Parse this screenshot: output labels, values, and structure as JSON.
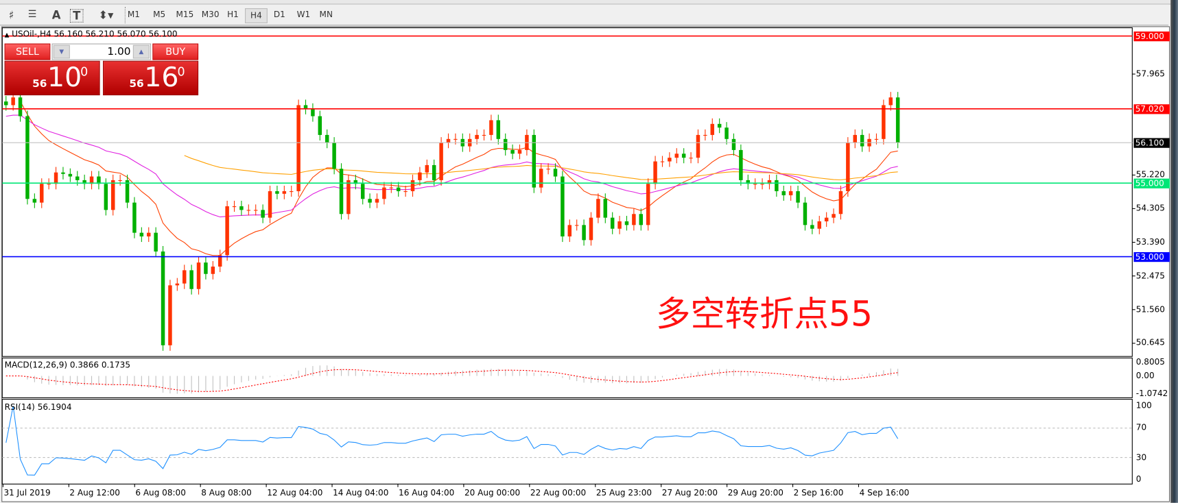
{
  "toolbar": {
    "icons": [
      "elliott-wave-icon",
      "fibonacci-icon",
      "text-icon",
      "text-label-icon",
      "arrows-icon"
    ],
    "text_icon_glyph": "A",
    "timeframes": [
      "M1",
      "M5",
      "M15",
      "M30",
      "H1",
      "H4",
      "D1",
      "W1",
      "MN"
    ],
    "selected_timeframe": "H4"
  },
  "chart": {
    "header": "USOil-,H4  56.160 56.210 56.070 56.100",
    "trade_panel": {
      "sell_label": "SELL",
      "buy_label": "BUY",
      "lot": "1.00",
      "sell_price_prefix": "56",
      "sell_price_big": "10",
      "sell_price_sup": "0",
      "buy_price_prefix": "56",
      "buy_price_big": "16",
      "buy_price_sup": "0"
    },
    "price_axis": [
      "57.965",
      "55.220",
      "54.305",
      "53.390",
      "52.475",
      "51.560",
      "50.645"
    ],
    "price_axis_values": [
      57.965,
      55.22,
      54.305,
      53.39,
      52.475,
      51.56,
      50.645
    ],
    "horizontal_lines": [
      {
        "label": "59.000",
        "value": 59.0,
        "color": "#ff0000"
      },
      {
        "label": "57.020",
        "value": 57.02,
        "color": "#ff0000"
      },
      {
        "label": "56.100",
        "value": 56.1,
        "color": "#000000"
      },
      {
        "label": "55.000",
        "value": 55.0,
        "color": "#00e676"
      },
      {
        "label": "53.000",
        "value": 53.0,
        "color": "#0000ff"
      }
    ],
    "annotation": "多空转折点55",
    "up_color": "#ff3300",
    "down_color": "#00b000",
    "ma_colors": [
      "#ff4000",
      "#e020e0",
      "#ffa000"
    ],
    "closes": [
      57.12,
      57.33,
      56.82,
      54.57,
      54.47,
      54.98,
      54.98,
      55.29,
      55.25,
      55.18,
      55.08,
      54.98,
      55.18,
      54.98,
      54.27,
      55.08,
      55.08,
      54.47,
      53.65,
      53.55,
      53.65,
      53.14,
      50.59,
      52.22,
      52.27,
      52.63,
      52.12,
      52.84,
      52.53,
      52.73,
      53.04,
      54.37,
      54.37,
      54.27,
      54.27,
      54.27,
      54.06,
      54.78,
      54.71,
      54.78,
      54.78,
      57.12,
      57.02,
      56.82,
      56.31,
      56.1,
      55.39,
      54.16,
      55.08,
      54.98,
      54.57,
      54.47,
      54.57,
      54.88,
      54.88,
      54.78,
      54.78,
      55.08,
      55.29,
      55.49,
      55.08,
      56.1,
      56.2,
      56.2,
      56.0,
      56.2,
      56.31,
      56.31,
      56.71,
      56.2,
      55.9,
      55.8,
      55.9,
      56.31,
      54.88,
      55.39,
      55.39,
      55.18,
      53.55,
      53.86,
      53.86,
      53.45,
      54.06,
      54.57,
      54.06,
      53.76,
      53.96,
      53.86,
      54.16,
      53.86,
      54.98,
      55.59,
      55.59,
      55.69,
      55.8,
      55.69,
      55.69,
      56.31,
      56.31,
      56.61,
      56.51,
      56.2,
      55.9,
      55.08,
      54.98,
      54.98,
      54.98,
      55.08,
      54.78,
      54.67,
      54.78,
      54.47,
      53.86,
      53.76,
      53.96,
      54.06,
      54.16,
      54.78,
      56.1,
      56.31,
      56.0,
      56.2,
      56.2,
      57.12,
      57.33,
      56.1
    ]
  },
  "macd": {
    "label": "MACD(12,26,9) 0.3866 0.1735",
    "axis": [
      "0.8005",
      "0.00",
      "-1.0742"
    ],
    "range": [
      -1.0742,
      0.8005
    ],
    "histogram_color": "#c0c0c0",
    "signal_color": "#ff0000"
  },
  "rsi": {
    "label": "RSI(14) 56.1904",
    "axis": [
      "100",
      "70",
      "30",
      "0"
    ],
    "levels": [
      70,
      30
    ],
    "line_color": "#1e90ff"
  },
  "time_axis": [
    "31 Jul 2019",
    "2 Aug 12:00",
    "6 Aug 08:00",
    "8 Aug 08:00",
    "12 Aug 04:00",
    "14 Aug 04:00",
    "16 Aug 04:00",
    "20 Aug 00:00",
    "22 Aug 00:00",
    "25 Aug 23:00",
    "27 Aug 20:00",
    "29 Aug 20:00",
    "2 Sep 16:00",
    "4 Sep 16:00"
  ]
}
